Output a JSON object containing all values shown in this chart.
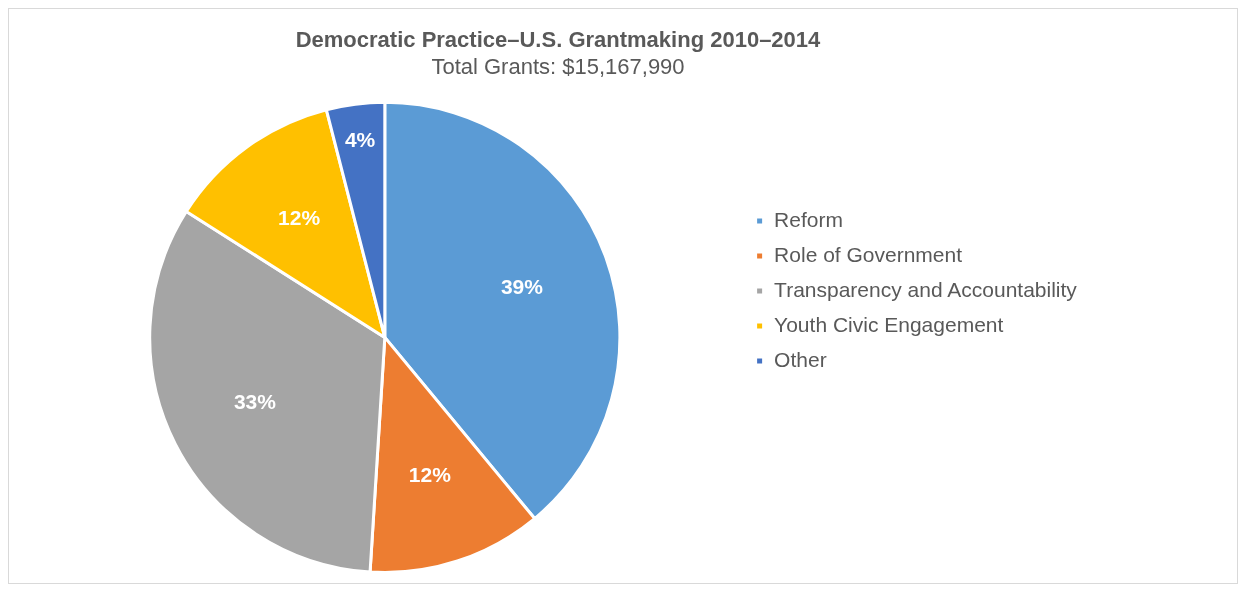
{
  "chart_data": {
    "type": "pie",
    "title": "Democratic Practice–U.S. Grantmaking 2010–2014",
    "subtitle": "Total Grants: $15,167,990",
    "categories": [
      "Reform",
      "Role of Government",
      "Transparency and Accountability",
      "Youth Civic Engagement",
      "Other"
    ],
    "values": [
      39,
      12,
      33,
      12,
      4
    ],
    "colors": [
      "#5b9bd5",
      "#ed7d31",
      "#a5a5a5",
      "#ffc000",
      "#4472c4"
    ],
    "value_labels": [
      "39%",
      "12%",
      "33%",
      "12%",
      "4%"
    ],
    "legend": "right"
  }
}
